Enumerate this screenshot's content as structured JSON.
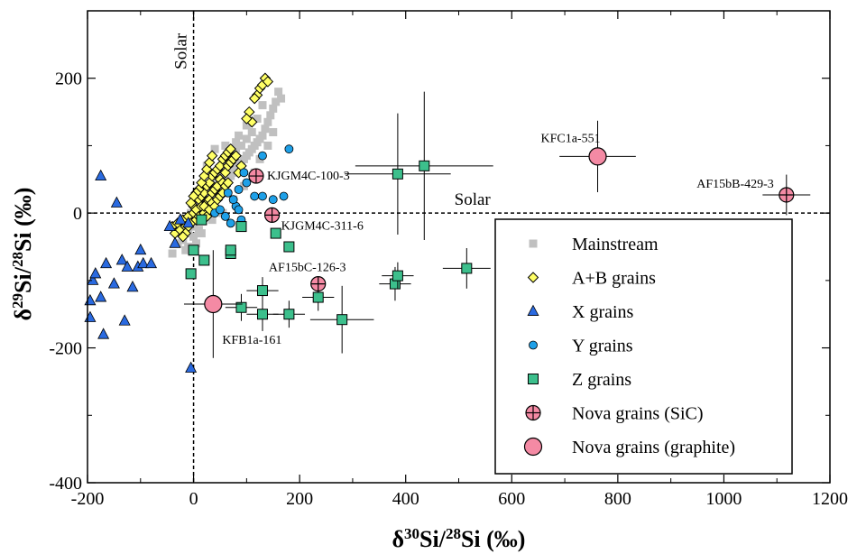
{
  "chart_data": {
    "type": "scatter",
    "xlabel": {
      "pre": "δ",
      "sup1": "30",
      "mid": "Si/",
      "sup2": "28",
      "post": "Si (‰)"
    },
    "ylabel": {
      "pre": "δ",
      "sup1": "29",
      "mid": "Si/",
      "sup2": "28",
      "post": "Si (‰)"
    },
    "xlim": [
      -200,
      1200
    ],
    "ylim": [
      -400,
      300
    ],
    "xticks": [
      -200,
      0,
      200,
      400,
      600,
      800,
      1000,
      1200
    ],
    "yticks": [
      -400,
      -200,
      0,
      200
    ],
    "xtick_labels": [
      "-200",
      "0",
      "200",
      "400",
      "600",
      "800",
      "1000",
      "1200"
    ],
    "ytick_labels": [
      "-400",
      "-200",
      "0",
      "200"
    ],
    "reference_lines": [
      {
        "orientation": "vertical",
        "value": 0,
        "label": "Solar"
      },
      {
        "orientation": "horizontal",
        "value": 0,
        "label": "Solar"
      }
    ],
    "legend_position": "bottom-right",
    "colors": {
      "mainstream": "#c0c0c0",
      "ab": "#ffff66",
      "x": "#2a6ae0",
      "y": "#1ea0e8",
      "z": "#3cbf8c",
      "nova": "#f48aa4"
    },
    "series": [
      {
        "name": "Mainstream",
        "marker": "square",
        "points": [
          [
            -40,
            -60
          ],
          [
            -30,
            -45
          ],
          [
            -20,
            -40
          ],
          [
            -10,
            -30
          ],
          [
            -5,
            -20
          ],
          [
            0,
            -15
          ],
          [
            5,
            -10
          ],
          [
            10,
            -5
          ],
          [
            15,
            0
          ],
          [
            20,
            5
          ],
          [
            25,
            10
          ],
          [
            30,
            15
          ],
          [
            35,
            20
          ],
          [
            40,
            25
          ],
          [
            45,
            30
          ],
          [
            50,
            35
          ],
          [
            55,
            40
          ],
          [
            60,
            45
          ],
          [
            65,
            50
          ],
          [
            70,
            55
          ],
          [
            75,
            60
          ],
          [
            80,
            65
          ],
          [
            85,
            70
          ],
          [
            90,
            75
          ],
          [
            95,
            80
          ],
          [
            100,
            85
          ],
          [
            105,
            90
          ],
          [
            110,
            95
          ],
          [
            115,
            100
          ],
          [
            120,
            105
          ],
          [
            125,
            110
          ],
          [
            130,
            115
          ],
          [
            135,
            125
          ],
          [
            140,
            135
          ],
          [
            145,
            145
          ],
          [
            150,
            155
          ],
          [
            155,
            165
          ],
          [
            160,
            180
          ],
          [
            165,
            170
          ],
          [
            130,
            160
          ],
          [
            100,
            110
          ],
          [
            90,
            100
          ],
          [
            80,
            95
          ],
          [
            110,
            120
          ],
          [
            60,
            70
          ],
          [
            50,
            55
          ],
          [
            40,
            45
          ],
          [
            30,
            35
          ],
          [
            20,
            25
          ],
          [
            70,
            80
          ],
          [
            60,
            100
          ],
          [
            80,
            105
          ],
          [
            40,
            95
          ],
          [
            25,
            70
          ],
          [
            45,
            60
          ],
          [
            10,
            -25
          ],
          [
            -10,
            -50
          ],
          [
            -15,
            -55
          ],
          [
            0,
            -35
          ],
          [
            5,
            -45
          ],
          [
            15,
            -30
          ],
          [
            35,
            -10
          ],
          [
            55,
            0
          ],
          [
            75,
            20
          ],
          [
            95,
            40
          ],
          [
            115,
            60
          ],
          [
            125,
            80
          ],
          [
            140,
            100
          ],
          [
            150,
            120
          ],
          [
            120,
            140
          ],
          [
            100,
            130
          ],
          [
            85,
            115
          ],
          [
            65,
            90
          ],
          [
            35,
            60
          ],
          [
            20,
            40
          ],
          [
            5,
            20
          ],
          [
            -5,
            0
          ]
        ]
      },
      {
        "name": "A+B grains",
        "marker": "diamond",
        "points": [
          [
            -40,
            -20
          ],
          [
            -35,
            -30
          ],
          [
            -30,
            -15
          ],
          [
            -25,
            -25
          ],
          [
            -20,
            -10
          ],
          [
            -15,
            -20
          ],
          [
            -10,
            -5
          ],
          [
            -5,
            -15
          ],
          [
            0,
            0
          ],
          [
            0,
            10
          ],
          [
            5,
            -10
          ],
          [
            5,
            5
          ],
          [
            10,
            20
          ],
          [
            10,
            -5
          ],
          [
            15,
            10
          ],
          [
            15,
            25
          ],
          [
            20,
            30
          ],
          [
            20,
            0
          ],
          [
            25,
            15
          ],
          [
            25,
            40
          ],
          [
            30,
            20
          ],
          [
            30,
            45
          ],
          [
            35,
            30
          ],
          [
            35,
            55
          ],
          [
            40,
            35
          ],
          [
            40,
            60
          ],
          [
            45,
            40
          ],
          [
            45,
            65
          ],
          [
            50,
            50
          ],
          [
            50,
            70
          ],
          [
            55,
            45
          ],
          [
            55,
            80
          ],
          [
            60,
            60
          ],
          [
            60,
            85
          ],
          [
            65,
            70
          ],
          [
            65,
            90
          ],
          [
            70,
            75
          ],
          [
            70,
            95
          ],
          [
            75,
            80
          ],
          [
            80,
            85
          ],
          [
            85,
            60
          ],
          [
            90,
            70
          ],
          [
            20,
            10
          ],
          [
            25,
            -5
          ],
          [
            30,
            5
          ],
          [
            35,
            15
          ],
          [
            40,
            10
          ],
          [
            45,
            20
          ],
          [
            50,
            25
          ],
          [
            55,
            30
          ],
          [
            60,
            40
          ],
          [
            65,
            45
          ],
          [
            10,
            35
          ],
          [
            15,
            45
          ],
          [
            20,
            55
          ],
          [
            25,
            65
          ],
          [
            30,
            75
          ],
          [
            35,
            85
          ],
          [
            5,
            30
          ],
          [
            0,
            25
          ],
          [
            -5,
            15
          ],
          [
            -10,
            -20
          ],
          [
            -15,
            -30
          ],
          [
            -20,
            -35
          ],
          [
            110,
            135
          ],
          [
            120,
            175
          ],
          [
            125,
            185
          ],
          [
            130,
            190
          ],
          [
            135,
            200
          ],
          [
            140,
            195
          ],
          [
            115,
            170
          ],
          [
            105,
            150
          ],
          [
            100,
            140
          ]
        ]
      },
      {
        "name": "X grains",
        "marker": "triangle",
        "points": [
          [
            -175,
            55
          ],
          [
            -145,
            15
          ],
          [
            -195,
            -130
          ],
          [
            -195,
            -155
          ],
          [
            -190,
            -100
          ],
          [
            -185,
            -90
          ],
          [
            -175,
            -125
          ],
          [
            -170,
            -180
          ],
          [
            -165,
            -75
          ],
          [
            -150,
            -105
          ],
          [
            -135,
            -70
          ],
          [
            -130,
            -160
          ],
          [
            -125,
            -80
          ],
          [
            -115,
            -110
          ],
          [
            -105,
            -80
          ],
          [
            -100,
            -55
          ],
          [
            -95,
            -75
          ],
          [
            -80,
            -75
          ],
          [
            -45,
            -20
          ],
          [
            -35,
            -45
          ],
          [
            -25,
            -10
          ],
          [
            -10,
            -15
          ],
          [
            -5,
            -230
          ]
        ]
      },
      {
        "name": "Y grains",
        "marker": "circle",
        "points": [
          [
            180,
            95
          ],
          [
            130,
            85
          ],
          [
            95,
            60
          ],
          [
            100,
            45
          ],
          [
            115,
            25
          ],
          [
            130,
            25
          ],
          [
            170,
            25
          ],
          [
            150,
            20
          ],
          [
            85,
            35
          ],
          [
            80,
            10
          ],
          [
            90,
            -10
          ],
          [
            70,
            -15
          ],
          [
            60,
            -5
          ],
          [
            40,
            0
          ],
          [
            50,
            5
          ],
          [
            85,
            5
          ],
          [
            75,
            20
          ],
          [
            65,
            30
          ]
        ]
      },
      {
        "name": "Z grains",
        "marker": "square",
        "points": [
          {
            "x": -5,
            "y": -90
          },
          {
            "x": 0,
            "y": -55
          },
          {
            "x": 20,
            "y": -70
          },
          {
            "x": 15,
            "y": -10
          },
          {
            "x": 70,
            "y": -60
          },
          {
            "x": 70,
            "y": -55
          },
          {
            "x": 90,
            "y": -20
          },
          {
            "x": 155,
            "y": -30
          },
          {
            "x": 180,
            "y": -50
          },
          {
            "x": 90,
            "y": -140,
            "xerr": 30,
            "yerr": 20
          },
          {
            "x": 130,
            "y": -115,
            "xerr": 30,
            "yerr": 20
          },
          {
            "x": 130,
            "y": -150,
            "xerr": 30,
            "yerr": 25
          },
          {
            "x": 180,
            "y": -150,
            "xerr": 30,
            "yerr": 20
          },
          {
            "x": 235,
            "y": -125,
            "xerr": 30,
            "yerr": 20
          },
          {
            "x": 280,
            "y": -158,
            "xerr": 60,
            "yerr": 50
          },
          {
            "x": 380,
            "y": -105,
            "xerr": 30,
            "yerr": 25
          },
          {
            "x": 385,
            "y": -93,
            "xerr": 30,
            "yerr": 20
          },
          {
            "x": 515,
            "y": -82,
            "xerr": 45,
            "yerr": 30
          },
          {
            "x": 385,
            "y": 58,
            "xerr": 100,
            "yerr": 90
          },
          {
            "x": 435,
            "y": 70,
            "xerr": 130,
            "yerr": 110
          }
        ]
      },
      {
        "name": "Nova grains (SiC)",
        "marker": "circle-plus",
        "points": [
          {
            "x": 118,
            "y": 55,
            "label": "KJGM4C-100-3"
          },
          {
            "x": 148,
            "y": -3,
            "label": "KJGM4C-311-6"
          },
          {
            "x": 235,
            "y": -105,
            "label": "AF15bC-126-3"
          },
          {
            "x": 1118,
            "y": 27,
            "xerr": 45,
            "yerr": 30,
            "label": "AF15bB-429-3"
          }
        ]
      },
      {
        "name": "Nova grains (graphite)",
        "marker": "circle",
        "points": [
          {
            "x": 37,
            "y": -135,
            "xerr": 55,
            "yerr": 80,
            "label": "KFB1a-161"
          },
          {
            "x": 762,
            "y": 84,
            "xerr": 72,
            "yerr": 53,
            "label": "KFC1a-551"
          }
        ]
      }
    ]
  }
}
